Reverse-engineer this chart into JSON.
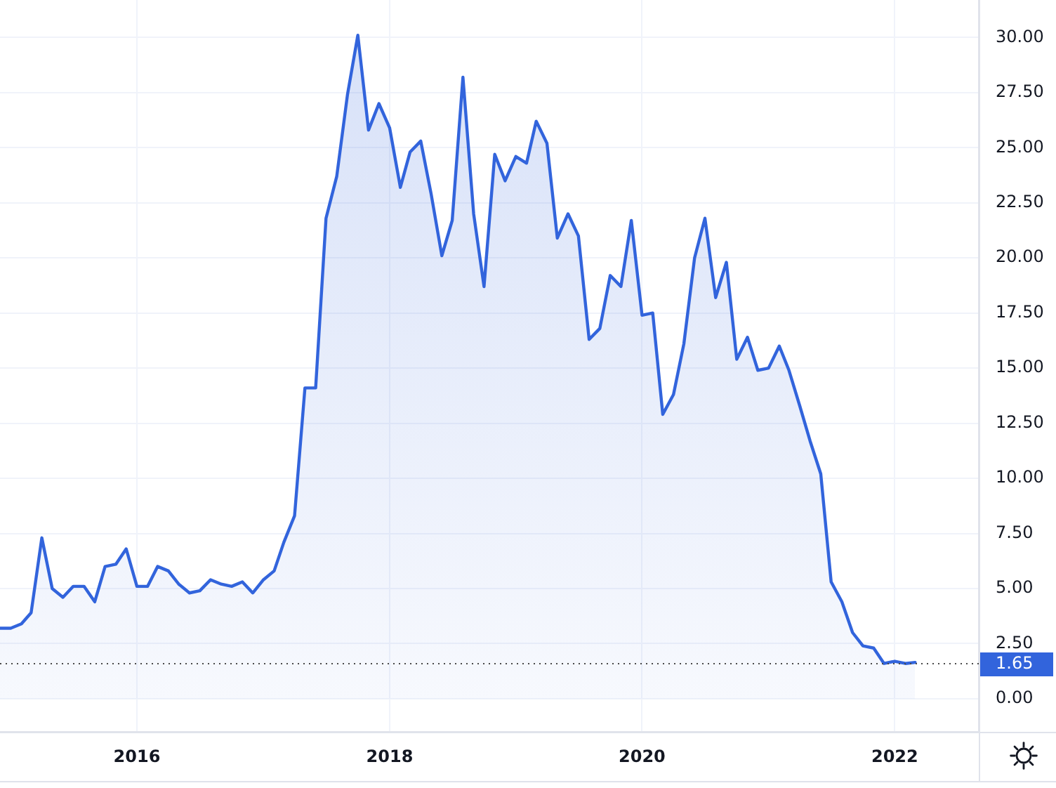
{
  "chart_data": {
    "type": "area",
    "x": [
      "2014-12",
      "2015-01",
      "2015-02",
      "2015-03",
      "2015-04",
      "2015-05",
      "2015-06",
      "2015-07",
      "2015-08",
      "2015-09",
      "2015-10",
      "2015-11",
      "2015-12",
      "2016-01",
      "2016-02",
      "2016-03",
      "2016-04",
      "2016-05",
      "2016-06",
      "2016-07",
      "2016-08",
      "2016-09",
      "2016-10",
      "2016-11",
      "2016-12",
      "2017-01",
      "2017-02",
      "2017-03",
      "2017-04",
      "2017-05",
      "2017-06",
      "2017-07",
      "2017-08",
      "2017-09",
      "2017-10",
      "2017-11",
      "2017-12",
      "2018-01",
      "2018-02",
      "2018-03",
      "2018-04",
      "2018-05",
      "2018-06",
      "2018-07",
      "2018-08",
      "2018-09",
      "2018-10",
      "2018-11",
      "2018-12",
      "2019-01",
      "2019-02",
      "2019-03",
      "2019-04",
      "2019-05",
      "2019-06",
      "2019-07",
      "2019-08",
      "2019-09",
      "2019-10",
      "2019-11",
      "2019-12",
      "2020-01",
      "2020-02",
      "2020-03",
      "2020-04",
      "2020-05",
      "2020-06",
      "2020-07",
      "2020-08",
      "2020-09",
      "2020-10",
      "2020-11",
      "2020-12",
      "2021-01",
      "2021-02",
      "2021-03",
      "2021-04",
      "2021-05",
      "2021-06",
      "2021-07",
      "2021-08",
      "2021-09",
      "2021-10",
      "2021-11",
      "2021-12",
      "2022-01",
      "2022-02",
      "2022-03"
    ],
    "values": [
      3.2,
      3.2,
      3.4,
      3.9,
      7.3,
      5.0,
      4.6,
      5.1,
      5.1,
      4.4,
      6.0,
      6.1,
      6.8,
      5.1,
      5.1,
      6.0,
      5.8,
      5.2,
      4.8,
      4.9,
      5.4,
      5.2,
      5.1,
      5.3,
      4.8,
      5.4,
      5.8,
      7.1,
      8.3,
      14.1,
      14.1,
      21.8,
      23.7,
      27.4,
      30.1,
      25.8,
      27.0,
      25.9,
      23.2,
      24.8,
      25.3,
      22.9,
      20.1,
      21.7,
      28.2,
      22.0,
      18.7,
      24.7,
      23.5,
      24.6,
      24.3,
      26.2,
      25.2,
      20.9,
      22.0,
      21.0,
      16.3,
      16.8,
      19.2,
      18.7,
      21.7,
      17.4,
      17.5,
      12.9,
      13.8,
      16.1,
      20.0,
      21.8,
      18.2,
      19.8,
      15.4,
      16.4,
      14.9,
      15.0,
      16.0,
      14.9,
      13.3,
      11.7,
      10.2,
      5.3,
      4.4,
      3.0,
      2.4,
      2.3,
      1.6,
      1.7,
      1.6,
      1.65
    ],
    "color": "#3264dc",
    "xlim": [
      "2014-12",
      "2022-09"
    ],
    "xticks": [
      "2016",
      "2018",
      "2020",
      "2022"
    ],
    "ylim": [
      -1.5,
      31.7
    ],
    "yticks": [
      {
        "value": 0,
        "label": "0.00"
      },
      {
        "value": 2.5,
        "label": "2.50"
      },
      {
        "value": 5,
        "label": "5.00"
      },
      {
        "value": 7.5,
        "label": "7.50"
      },
      {
        "value": 10,
        "label": "10.00"
      },
      {
        "value": 12.5,
        "label": "12.50"
      },
      {
        "value": 15,
        "label": "15.00"
      },
      {
        "value": 17.5,
        "label": "17.50"
      },
      {
        "value": 20,
        "label": "20.00"
      },
      {
        "value": 22.5,
        "label": "22.50"
      },
      {
        "value": 25,
        "label": "25.00"
      },
      {
        "value": 27.5,
        "label": "27.50"
      },
      {
        "value": 30,
        "label": "30.00"
      }
    ],
    "grid": true,
    "marker": "none",
    "line_style": "solid",
    "ref_lines": [
      {
        "axis": "y",
        "value": 1.65,
        "label": "1.65",
        "color": "#4a4a4a",
        "line_style": "dotted"
      }
    ]
  }
}
